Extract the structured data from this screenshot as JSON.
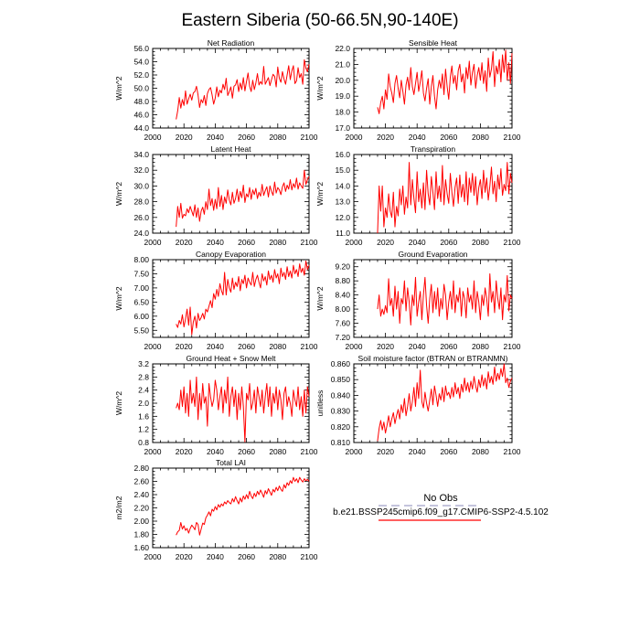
{
  "figure": {
    "title": "Eastern Siberia (50-66.5N,90-140E)"
  },
  "chart_data": [
    {
      "type": "line",
      "title": "Net Radiation",
      "ylabel": "W/m^2",
      "xlim": [
        2000,
        2100
      ],
      "ylim": [
        44.0,
        56.0
      ],
      "xticks": [
        2000,
        2020,
        2040,
        2060,
        2080,
        2100
      ],
      "yticks": [
        44.0,
        46.0,
        48.0,
        50.0,
        52.0,
        54.0,
        56.0
      ],
      "ydec": 1,
      "series": [
        {
          "color": "#ff0000",
          "x0": 2015,
          "values": [
            45.3,
            46.6,
            48.6,
            47.0,
            48.3,
            47.4,
            49.6,
            47.6,
            48.4,
            49.1,
            48.2,
            49.3,
            49.5,
            50.3,
            49.0,
            47.1,
            48.3,
            47.8,
            48.9,
            47.4,
            49.2,
            49.8,
            50.1,
            49.0,
            47.6,
            48.5,
            50.2,
            48.7,
            49.7,
            49.3,
            50.6,
            49.8,
            51.5,
            48.9,
            49.5,
            50.2,
            48.5,
            50.3,
            50.5,
            51.3,
            49.5,
            50.8,
            49.8,
            51.6,
            49.6,
            51.0,
            52.3,
            50.3,
            49.5,
            51.2,
            49.8,
            50.8,
            52.2,
            50.5,
            51.0,
            50.6,
            53.3,
            50.6,
            51.1,
            51.6,
            50.4,
            51.3,
            52.1,
            51.8,
            50.2,
            53.2,
            51.5,
            50.9,
            52.5,
            51.4,
            50.6,
            52.0,
            53.4,
            51.3,
            52.6,
            53.4,
            50.7,
            51.1,
            53.1,
            51.6,
            52.2,
            50.6,
            54.3,
            53.0,
            52.5,
            53.6
          ]
        }
      ]
    },
    {
      "type": "line",
      "title": "Sensible Heat",
      "ylabel": "W/m^2",
      "xlim": [
        2000,
        2100
      ],
      "ylim": [
        17.0,
        22.0
      ],
      "xticks": [
        2000,
        2020,
        2040,
        2060,
        2080,
        2100
      ],
      "yticks": [
        17.0,
        18.0,
        19.0,
        20.0,
        21.0,
        22.0
      ],
      "ydec": 1,
      "series": [
        {
          "color": "#ff0000",
          "x0": 2015,
          "values": [
            18.3,
            17.9,
            18.6,
            19.0,
            18.2,
            19.4,
            18.8,
            20.4,
            19.6,
            19.2,
            18.6,
            19.8,
            20.3,
            19.5,
            18.9,
            20.0,
            19.3,
            18.5,
            19.7,
            20.2,
            19.4,
            20.8,
            19.6,
            19.1,
            19.8,
            20.5,
            19.3,
            19.9,
            20.6,
            19.2,
            18.7,
            19.5,
            20.1,
            18.5,
            19.6,
            20.3,
            19.0,
            18.2,
            19.4,
            20.0,
            19.5,
            20.4,
            19.1,
            20.7,
            19.6,
            18.8,
            20.2,
            20.9,
            19.8,
            20.3,
            19.4,
            20.6,
            21.0,
            19.9,
            20.4,
            19.2,
            20.8,
            20.1,
            21.2,
            19.7,
            20.5,
            21.0,
            19.5,
            20.3,
            20.8,
            20.0,
            21.1,
            19.8,
            20.6,
            19.3,
            21.4,
            20.2,
            20.7,
            21.8,
            19.6,
            20.9,
            20.4,
            21.3,
            19.9,
            21.6,
            20.5,
            21.9,
            20.0,
            21.1,
            19.8,
            21.7
          ]
        }
      ]
    },
    {
      "type": "line",
      "title": "Latent Heat",
      "ylabel": "W/m^2",
      "xlim": [
        2000,
        2100
      ],
      "ylim": [
        24.0,
        34.0
      ],
      "xticks": [
        2000,
        2020,
        2040,
        2060,
        2080,
        2100
      ],
      "yticks": [
        24.0,
        26.0,
        28.0,
        30.0,
        32.0,
        34.0
      ],
      "ydec": 1,
      "series": [
        {
          "color": "#ff0000",
          "x0": 2015,
          "values": [
            24.8,
            27.4,
            26.0,
            27.8,
            25.9,
            26.4,
            26.2,
            27.1,
            26.6,
            27.4,
            26.8,
            26.2,
            27.6,
            26.0,
            27.2,
            25.5,
            26.8,
            27.3,
            26.4,
            28.0,
            27.0,
            29.6,
            27.5,
            28.4,
            26.9,
            28.3,
            27.1,
            29.8,
            27.4,
            28.8,
            27.0,
            28.6,
            27.8,
            29.5,
            28.2,
            27.6,
            29.2,
            27.8,
            28.4,
            29.6,
            28.0,
            29.3,
            28.5,
            30.1,
            27.9,
            29.0,
            28.6,
            29.8,
            28.3,
            29.5,
            28.9,
            29.7,
            28.4,
            29.2,
            28.7,
            30.2,
            28.8,
            29.4,
            29.9,
            28.6,
            30.0,
            29.3,
            28.8,
            30.5,
            29.1,
            29.8,
            29.5,
            28.9,
            29.9,
            30.4,
            29.3,
            30.1,
            29.6,
            30.8,
            29.5,
            30.3,
            29.8,
            31.0,
            29.6,
            30.4,
            30.0,
            29.7,
            32.0,
            30.2,
            30.8,
            31.2
          ]
        }
      ]
    },
    {
      "type": "line",
      "title": "Transpiration",
      "ylabel": "W/m^2",
      "xlim": [
        2000,
        2100
      ],
      "ylim": [
        11.0,
        16.0
      ],
      "xticks": [
        2000,
        2020,
        2040,
        2060,
        2080,
        2100
      ],
      "yticks": [
        11.0,
        12.0,
        13.0,
        14.0,
        15.0,
        16.0
      ],
      "ydec": 1,
      "series": [
        {
          "color": "#ff0000",
          "x0": 2015,
          "values": [
            11.0,
            14.0,
            12.4,
            14.0,
            11.4,
            12.6,
            12.0,
            13.5,
            12.4,
            12.0,
            13.6,
            11.4,
            12.7,
            12.1,
            13.8,
            12.8,
            14.0,
            12.2,
            13.3,
            12.6,
            15.5,
            12.8,
            14.4,
            13.2,
            12.3,
            14.9,
            13.0,
            13.8,
            12.6,
            14.2,
            12.5,
            15.0,
            13.5,
            12.8,
            14.6,
            13.6,
            12.5,
            14.9,
            13.2,
            14.0,
            13.0,
            15.3,
            12.8,
            14.4,
            13.5,
            12.9,
            14.8,
            13.6,
            12.7,
            13.9,
            14.5,
            12.9,
            14.7,
            13.3,
            14.1,
            13.0,
            14.9,
            12.8,
            14.5,
            13.6,
            14.8,
            13.4,
            14.6,
            12.8,
            13.9,
            14.4,
            13.2,
            15.0,
            13.6,
            14.5,
            13.1,
            14.0,
            15.2,
            13.5,
            14.3,
            13.0,
            14.7,
            13.8,
            15.1,
            13.4,
            14.1,
            13.7,
            15.5,
            13.5,
            14.8,
            14.2
          ]
        }
      ]
    },
    {
      "type": "line",
      "title": "Canopy Evaporation",
      "ylabel": "W/m^2",
      "xlim": [
        2000,
        2100
      ],
      "ylim": [
        5.25,
        8.0
      ],
      "xticks": [
        2000,
        2020,
        2040,
        2060,
        2080,
        2100
      ],
      "yticks": [
        5.5,
        6.0,
        6.5,
        7.0,
        7.5,
        8.0
      ],
      "ydec": 2,
      "series": [
        {
          "color": "#ff0000",
          "x0": 2015,
          "values": [
            5.72,
            5.6,
            5.85,
            5.72,
            6.05,
            5.62,
            5.9,
            6.25,
            5.68,
            6.32,
            5.35,
            5.8,
            6.0,
            5.58,
            6.1,
            5.85,
            5.95,
            6.1,
            5.9,
            6.25,
            6.15,
            6.35,
            6.55,
            6.3,
            6.8,
            6.6,
            6.95,
            6.7,
            7.15,
            6.9,
            6.75,
            7.55,
            6.75,
            7.3,
            7.0,
            6.85,
            7.35,
            6.95,
            7.2,
            7.05,
            7.4,
            6.9,
            7.3,
            7.15,
            7.45,
            7.0,
            7.35,
            7.2,
            7.1,
            7.55,
            7.05,
            7.3,
            7.45,
            7.2,
            7.0,
            7.5,
            7.25,
            7.4,
            7.1,
            7.6,
            7.3,
            7.45,
            7.2,
            7.65,
            7.35,
            7.5,
            7.15,
            7.7,
            7.4,
            7.55,
            7.3,
            7.75,
            7.4,
            7.6,
            7.35,
            7.8,
            7.5,
            7.65,
            7.4,
            7.85,
            7.55,
            7.7,
            7.45,
            7.95,
            7.65,
            7.8
          ]
        }
      ]
    },
    {
      "type": "line",
      "title": "Ground Evaporation",
      "ylabel": "W/m^2",
      "xlim": [
        2000,
        2100
      ],
      "ylim": [
        7.2,
        9.4
      ],
      "xticks": [
        2000,
        2020,
        2040,
        2060,
        2080,
        2100
      ],
      "yticks": [
        7.2,
        7.6,
        8.0,
        8.4,
        8.8,
        9.2
      ],
      "ydec": 2,
      "series": [
        {
          "color": "#ff0000",
          "x0": 2015,
          "values": [
            8.0,
            8.4,
            7.8,
            8.0,
            7.85,
            8.1,
            7.9,
            8.86,
            8.1,
            8.3,
            7.8,
            8.65,
            8.0,
            8.5,
            7.6,
            8.3,
            8.15,
            8.8,
            7.95,
            8.6,
            8.2,
            7.55,
            8.4,
            8.1,
            8.9,
            7.8,
            8.2,
            8.5,
            7.7,
            8.4,
            8.9,
            8.1,
            7.6,
            8.3,
            8.7,
            7.9,
            8.5,
            8.0,
            8.6,
            7.8,
            8.3,
            8.0,
            8.7,
            8.4,
            7.7,
            8.2,
            8.5,
            8.0,
            8.8,
            7.9,
            8.4,
            8.2,
            8.6,
            7.8,
            8.5,
            8.3,
            7.75,
            8.6,
            8.2,
            8.4,
            8.0,
            8.8,
            7.9,
            8.5,
            8.2,
            7.7,
            8.4,
            8.1,
            8.6,
            8.3,
            7.8,
            9.0,
            8.2,
            8.5,
            7.9,
            8.8,
            8.3,
            8.0,
            8.6,
            7.7,
            8.4,
            8.2,
            8.95,
            7.95,
            8.4,
            8.3
          ]
        }
      ]
    },
    {
      "type": "line",
      "title": "Ground Heat + Snow Melt",
      "ylabel": "W/m^2",
      "xlim": [
        2000,
        2100
      ],
      "ylim": [
        0.8,
        3.2
      ],
      "xticks": [
        2000,
        2020,
        2040,
        2060,
        2080,
        2100
      ],
      "yticks": [
        0.8,
        1.2,
        1.6,
        2.0,
        2.4,
        2.8,
        3.2
      ],
      "ydec": 1,
      "series": [
        {
          "color": "#ff0000",
          "x0": 2015,
          "values": [
            1.85,
            2.0,
            1.8,
            2.4,
            1.9,
            2.5,
            1.7,
            2.3,
            1.6,
            2.7,
            2.0,
            2.3,
            1.9,
            2.8,
            1.5,
            2.3,
            1.8,
            2.6,
            2.0,
            2.2,
            1.3,
            2.6,
            2.2,
            1.9,
            2.1,
            2.7,
            2.4,
            1.8,
            2.2,
            2.5,
            1.7,
            2.4,
            2.0,
            2.8,
            1.6,
            2.2,
            2.5,
            1.9,
            2.4,
            1.5,
            2.3,
            1.8,
            2.5,
            1.9,
            0.82,
            2.3,
            2.1,
            2.6,
            1.8,
            2.0,
            2.4,
            1.7,
            2.5,
            2.2,
            1.9,
            2.4,
            1.7,
            2.2,
            2.6,
            1.9,
            2.5,
            1.6,
            2.3,
            2.0,
            2.5,
            1.8,
            2.4,
            2.1,
            1.5,
            2.3,
            2.5,
            1.9,
            2.2,
            2.0,
            1.6,
            2.4,
            2.1,
            1.9,
            2.5,
            1.8,
            2.2,
            1.6,
            2.4,
            1.7,
            2.5,
            2.2
          ]
        }
      ]
    },
    {
      "type": "line",
      "title": "Soil moisture factor (BTRAN or BTRANMN)",
      "ylabel": "unitless",
      "xlim": [
        2000,
        2100
      ],
      "ylim": [
        0.81,
        0.86
      ],
      "xticks": [
        2000,
        2020,
        2040,
        2060,
        2080,
        2100
      ],
      "yticks": [
        0.81,
        0.82,
        0.83,
        0.84,
        0.85,
        0.86
      ],
      "ydec": 3,
      "series": [
        {
          "color": "#ff0000",
          "x0": 2015,
          "values": [
            0.811,
            0.819,
            0.824,
            0.818,
            0.823,
            0.816,
            0.821,
            0.827,
            0.82,
            0.825,
            0.829,
            0.822,
            0.827,
            0.831,
            0.825,
            0.834,
            0.829,
            0.838,
            0.827,
            0.833,
            0.841,
            0.83,
            0.836,
            0.845,
            0.833,
            0.848,
            0.838,
            0.856,
            0.836,
            0.832,
            0.842,
            0.835,
            0.83,
            0.837,
            0.844,
            0.834,
            0.846,
            0.84,
            0.833,
            0.841,
            0.837,
            0.845,
            0.836,
            0.846,
            0.84,
            0.842,
            0.838,
            0.845,
            0.839,
            0.848,
            0.841,
            0.845,
            0.838,
            0.847,
            0.842,
            0.851,
            0.843,
            0.848,
            0.842,
            0.849,
            0.844,
            0.852,
            0.846,
            0.842,
            0.85,
            0.845,
            0.853,
            0.846,
            0.851,
            0.844,
            0.855,
            0.848,
            0.852,
            0.847,
            0.858,
            0.849,
            0.854,
            0.85,
            0.857,
            0.852,
            0.86,
            0.848,
            0.851,
            0.845,
            0.849,
            0.851
          ]
        }
      ]
    },
    {
      "type": "line",
      "title": "Total LAI",
      "ylabel": "m2/m2",
      "xlim": [
        2000,
        2100
      ],
      "ylim": [
        1.6,
        2.8
      ],
      "xticks": [
        2000,
        2020,
        2040,
        2060,
        2080,
        2100
      ],
      "yticks": [
        1.6,
        1.8,
        2.0,
        2.2,
        2.4,
        2.6,
        2.8
      ],
      "ydec": 2,
      "series": [
        {
          "color": "#ff0000",
          "x0": 2015,
          "values": [
            1.79,
            1.84,
            1.86,
            1.98,
            1.88,
            1.93,
            1.86,
            1.89,
            1.82,
            1.89,
            1.94,
            1.91,
            1.87,
            1.98,
            1.95,
            1.79,
            1.88,
            1.97,
            1.95,
            2.05,
            2.09,
            2.14,
            2.08,
            2.18,
            2.15,
            2.22,
            2.17,
            2.25,
            2.21,
            2.26,
            2.23,
            2.29,
            2.26,
            2.31,
            2.28,
            2.26,
            2.34,
            2.29,
            2.37,
            2.31,
            2.26,
            2.35,
            2.29,
            2.38,
            2.33,
            2.4,
            2.34,
            2.45,
            2.38,
            2.34,
            2.42,
            2.37,
            2.45,
            2.4,
            2.47,
            2.42,
            2.36,
            2.46,
            2.41,
            2.49,
            2.44,
            2.39,
            2.48,
            2.44,
            2.51,
            2.46,
            2.53,
            2.48,
            2.45,
            2.55,
            2.5,
            2.58,
            2.54,
            2.61,
            2.57,
            2.66,
            2.6,
            2.64,
            2.58,
            2.66,
            2.62,
            2.59,
            2.64,
            2.61,
            2.63,
            2.6
          ]
        }
      ]
    }
  ],
  "legend": {
    "obs_label": "No Obs",
    "obs_color": "#a0a0c8",
    "model_label": "b.e21.BSSP245cmip6.f09_g17.CMIP6-SSP2-4.5.102",
    "model_color": "#ff0000"
  }
}
